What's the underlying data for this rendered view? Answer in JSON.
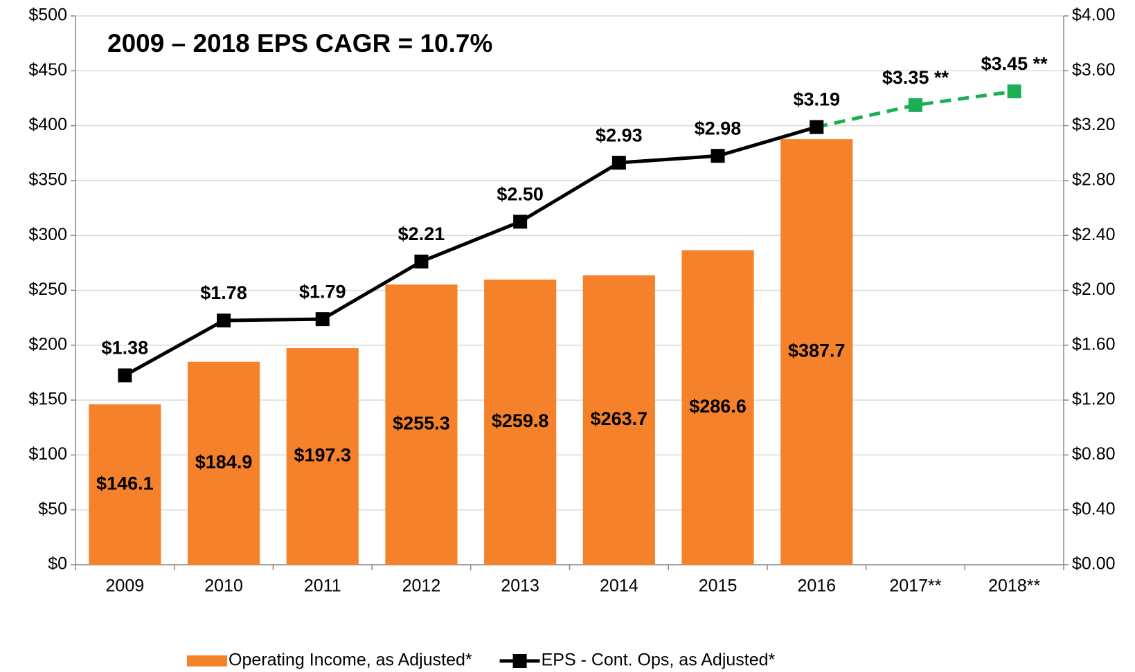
{
  "chart_data": {
    "type": "bar_line",
    "title": "2009 – 2018 EPS  CAGR = 10.7%",
    "categories": [
      "2009",
      "2010",
      "2011",
      "2012",
      "2013",
      "2014",
      "2015",
      "2016",
      "2017**",
      "2018**"
    ],
    "series": [
      {
        "name": "Operating Income, as Adjusted*",
        "type": "bar",
        "color": "#f5822a",
        "values": [
          146.1,
          184.9,
          197.3,
          255.3,
          259.8,
          263.7,
          286.6,
          387.7,
          null,
          null
        ],
        "value_labels": [
          "$146.1",
          "$184.9",
          "$197.3",
          "$255.3",
          "$259.8",
          "$263.7",
          "$286.6",
          "$387.7",
          null,
          null
        ]
      },
      {
        "type": "line",
        "axis": "y2",
        "color": "#1aaf54",
        "dashed": true,
        "values": [
          null,
          null,
          null,
          null,
          null,
          null,
          null,
          3.19,
          3.35,
          3.45
        ],
        "value_labels": [
          null,
          null,
          null,
          null,
          null,
          null,
          null,
          null,
          "$3.35 **",
          "$3.45 **"
        ]
      },
      {
        "name": "EPS - Cont. Ops, as Adjusted*",
        "type": "line",
        "axis": "y2",
        "color": "#000000",
        "values": [
          1.38,
          1.78,
          1.79,
          2.21,
          2.5,
          2.93,
          2.98,
          3.19,
          null,
          null
        ],
        "value_labels": [
          "$1.38",
          "$1.78",
          "$1.79",
          "$2.21",
          "$2.50",
          "$2.93",
          "$2.98",
          "$3.19",
          null,
          null
        ]
      }
    ],
    "ylim": [
      0,
      500
    ],
    "yticks": [
      {
        "value": 0,
        "label": "$0"
      },
      {
        "value": 50,
        "label": "$50"
      },
      {
        "value": 100,
        "label": "$100"
      },
      {
        "value": 150,
        "label": "$150"
      },
      {
        "value": 200,
        "label": "$200"
      },
      {
        "value": 250,
        "label": "$250"
      },
      {
        "value": 300,
        "label": "$300"
      },
      {
        "value": 350,
        "label": "$350"
      },
      {
        "value": 400,
        "label": "$400"
      },
      {
        "value": 450,
        "label": "$450"
      },
      {
        "value": 500,
        "label": "$500"
      }
    ],
    "y2lim": [
      0,
      4
    ],
    "y2ticks": [
      {
        "value": 0,
        "label": "$0.00"
      },
      {
        "value": 0.4,
        "label": "$0.40"
      },
      {
        "value": 0.8,
        "label": "$0.80"
      },
      {
        "value": 1.2,
        "label": "$1.20"
      },
      {
        "value": 1.6,
        "label": "$1.60"
      },
      {
        "value": 2.0,
        "label": "$2.00"
      },
      {
        "value": 2.4,
        "label": "$2.40"
      },
      {
        "value": 2.8,
        "label": "$2.80"
      },
      {
        "value": 3.2,
        "label": "$3.20"
      },
      {
        "value": 3.6,
        "label": "$3.60"
      },
      {
        "value": 4.0,
        "label": "$4.00"
      }
    ],
    "grid": true,
    "legend": "bottom"
  }
}
